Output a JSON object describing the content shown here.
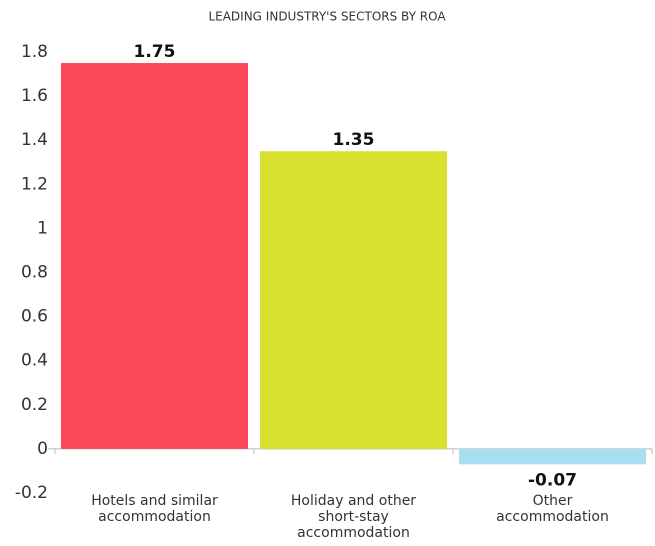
{
  "chart_data": {
    "type": "bar",
    "title": "LEADING INDUSTRY'S SECTORS BY ROA",
    "categories": [
      "Hotels and similar accommodation",
      "Holiday and other short-stay accommodation",
      "Other accommodation"
    ],
    "values": [
      1.75,
      1.35,
      -0.07
    ],
    "colors": [
      "#fc4a5a",
      "#d9e030",
      "#a8dff0"
    ],
    "ylim": [
      -0.2,
      1.8
    ],
    "yticks": [
      -0.2,
      0,
      0.2,
      0.4,
      0.6,
      0.8,
      1,
      1.2,
      1.4,
      1.6,
      1.8
    ],
    "grid": false
  }
}
